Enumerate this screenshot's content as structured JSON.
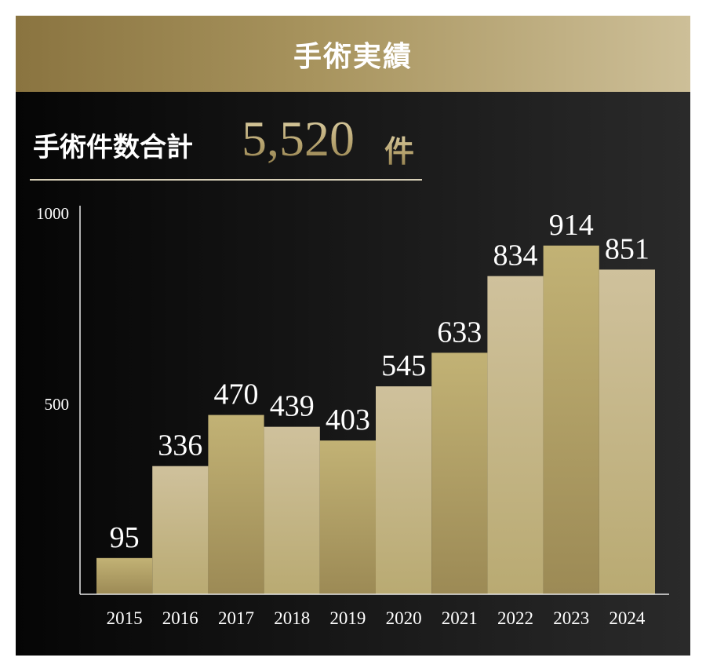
{
  "header": {
    "title": "手術実績"
  },
  "total": {
    "label": "手術件数合計",
    "value": "5,520",
    "unit": "件"
  },
  "colors": {
    "header_gradient": [
      "#8a7440",
      "#cdbf98"
    ],
    "bar_light": [
      "#cfc19c",
      "#b9aa72"
    ],
    "bar_dark": [
      "#c2b275",
      "#9c8a55"
    ],
    "axis": "#e8e8e8",
    "text": "#ffffff"
  },
  "chart_data": {
    "type": "bar",
    "categories": [
      "2015",
      "2016",
      "2017",
      "2018",
      "2019",
      "2020",
      "2021",
      "2022",
      "2023",
      "2024"
    ],
    "values": [
      95,
      336,
      470,
      439,
      403,
      545,
      633,
      834,
      914,
      851
    ],
    "yticks": [
      500,
      1000
    ],
    "ylim": [
      0,
      1000
    ],
    "title": "",
    "xlabel": "",
    "ylabel": ""
  }
}
